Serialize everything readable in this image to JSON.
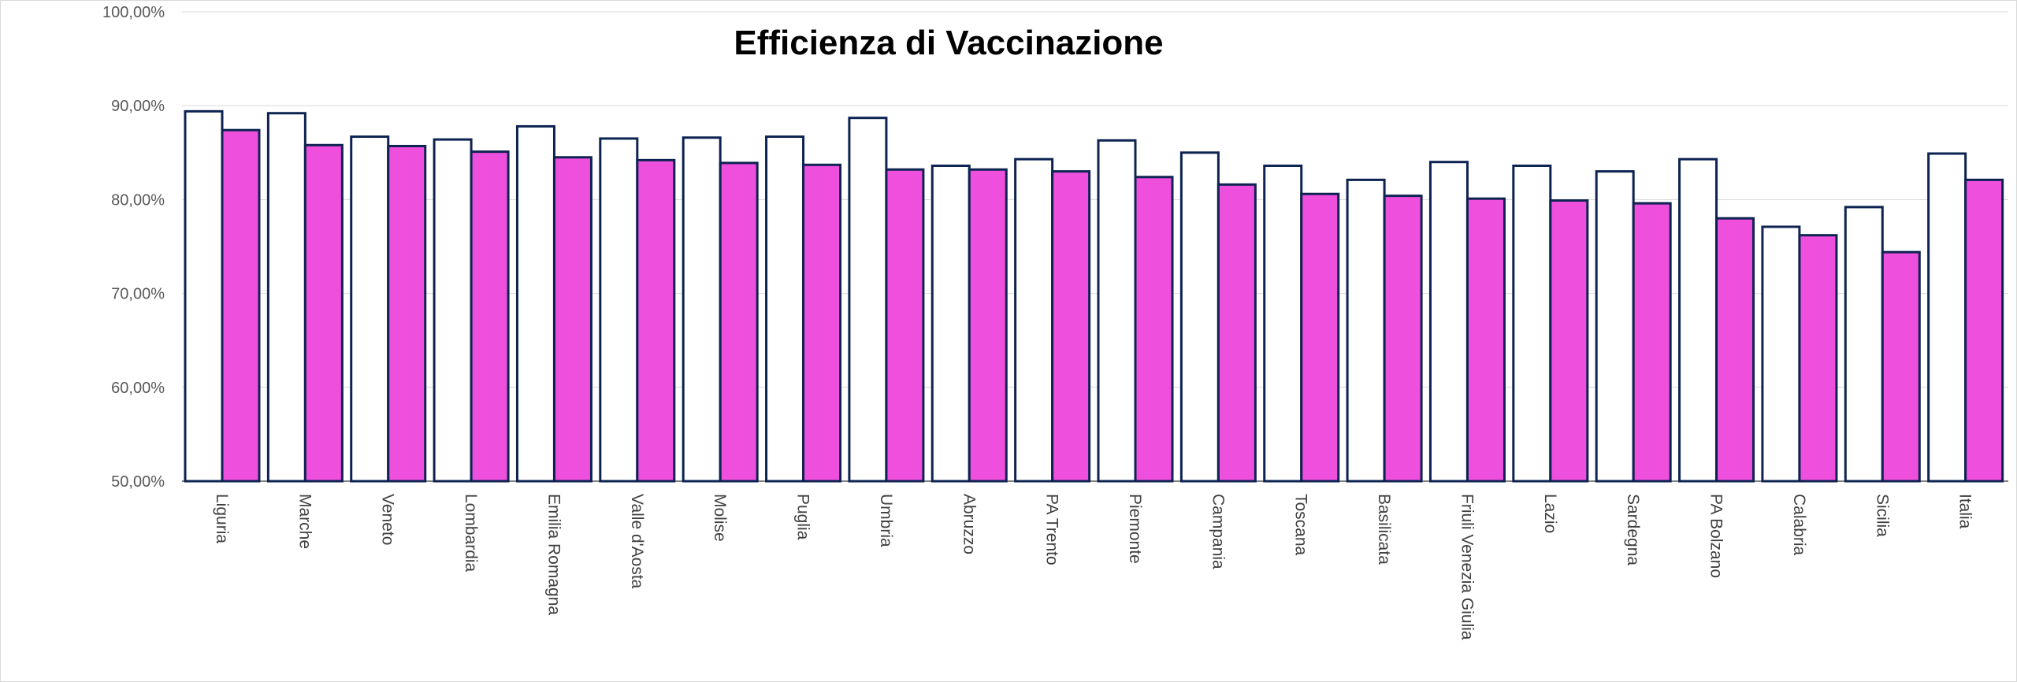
{
  "chart_data": {
    "type": "bar",
    "title": "Efficienza di Vaccinazione",
    "xlabel": "",
    "ylabel": "",
    "ylim": [
      0.5,
      1.0
    ],
    "yticks": [
      "50,00%",
      "60,00%",
      "70,00%",
      "80,00%",
      "90,00%",
      "100,00%"
    ],
    "ytick_values": [
      0.5,
      0.6,
      0.7,
      0.8,
      0.9,
      1.0
    ],
    "grid": true,
    "categories": [
      "Liguria",
      "Marche",
      "Veneto",
      "Lombardia",
      "Emilia Romagna",
      "Valle d'Aosta",
      "Molise",
      "Puglia",
      "Umbria",
      "Abruzzo",
      "PA Trento",
      "Piemonte",
      "Campania",
      "Toscana",
      "Basilicata",
      "Friuli Venezia Giulia",
      "Lazio",
      "Sardegna",
      "PA Bolzano",
      "Calabria",
      "Sicilia",
      "Italia"
    ],
    "series": [
      {
        "color": "#ffffff",
        "stroke": "#0d2352",
        "values": [
          0.894,
          0.892,
          0.867,
          0.864,
          0.878,
          0.865,
          0.866,
          0.867,
          0.887,
          0.836,
          0.843,
          0.863,
          0.85,
          0.836,
          0.821,
          0.84,
          0.836,
          0.83,
          0.843,
          0.771,
          0.792,
          0.849
        ]
      },
      {
        "color": "#ee4fdd",
        "stroke": "#0d2352",
        "values": [
          0.874,
          0.858,
          0.857,
          0.851,
          0.845,
          0.842,
          0.839,
          0.837,
          0.832,
          0.832,
          0.83,
          0.824,
          0.816,
          0.806,
          0.804,
          0.801,
          0.799,
          0.796,
          0.78,
          0.762,
          0.744,
          0.821
        ]
      }
    ]
  }
}
